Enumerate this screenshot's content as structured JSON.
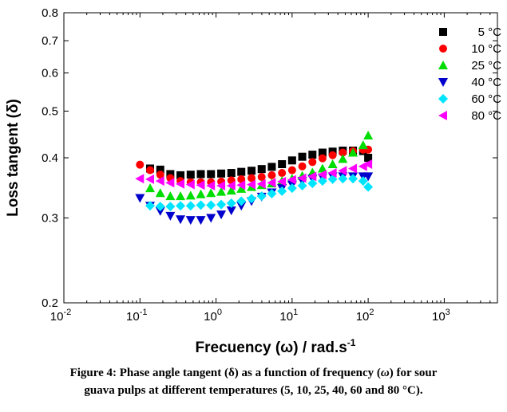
{
  "chart_data": {
    "type": "scatter",
    "xscale": "log",
    "yscale": "log",
    "xlim": [
      0.01,
      5000
    ],
    "ylim": [
      0.2,
      0.8
    ],
    "xlabel": "Frecuency (ω) / rad.s",
    "xlabel_sup": "-1",
    "ylabel": "Loss tangent (δ)",
    "x_ticks": [
      {
        "value": 0.01,
        "base": "10",
        "exp": "-2"
      },
      {
        "value": 0.1,
        "base": "10",
        "exp": "-1"
      },
      {
        "value": 1,
        "base": "10",
        "exp": "0"
      },
      {
        "value": 10,
        "base": "10",
        "exp": "1"
      },
      {
        "value": 100,
        "base": "10",
        "exp": "2"
      },
      {
        "value": 1000,
        "base": "10",
        "exp": "3"
      }
    ],
    "y_ticks": [
      {
        "value": 0.2,
        "label": "0.2"
      },
      {
        "value": 0.3,
        "label": "0.3"
      },
      {
        "value": 0.4,
        "label": "0.4"
      },
      {
        "value": 0.5,
        "label": "0.5"
      },
      {
        "value": 0.6,
        "label": "0.6"
      },
      {
        "value": 0.7,
        "label": "0.7"
      },
      {
        "value": 0.8,
        "label": "0.8"
      }
    ],
    "legend_position": "top-right",
    "x": [
      0.1,
      0.136,
      0.185,
      0.251,
      0.341,
      0.464,
      0.631,
      0.858,
      1.17,
      1.59,
      2.15,
      2.93,
      3.98,
      5.41,
      7.36,
      10,
      13.6,
      18.5,
      25.1,
      34.1,
      46.4,
      63.1,
      85.8,
      100
    ],
    "series": [
      {
        "name": "5 °C",
        "marker": "square",
        "color": "#000000",
        "values": [
          null,
          0.38,
          0.378,
          0.37,
          0.368,
          0.369,
          0.37,
          0.37,
          0.371,
          0.372,
          0.374,
          0.376,
          0.379,
          0.383,
          0.388,
          0.395,
          0.402,
          0.406,
          0.41,
          0.412,
          0.414,
          0.414,
          0.413,
          0.4
        ]
      },
      {
        "name": "10 °C",
        "marker": "circle",
        "color": "#ff0000",
        "values": [
          0.387,
          0.377,
          0.369,
          0.363,
          0.358,
          0.356,
          0.356,
          0.356,
          0.357,
          0.359,
          0.361,
          0.363,
          0.365,
          0.368,
          0.372,
          0.377,
          0.384,
          0.392,
          0.399,
          0.405,
          0.41,
          0.413,
          0.416,
          0.416
        ]
      },
      {
        "name": "25 °C",
        "marker": "triangle-up",
        "color": "#00dd00",
        "values": [
          null,
          0.346,
          0.338,
          0.333,
          0.333,
          0.334,
          0.336,
          0.338,
          0.34,
          0.342,
          0.345,
          0.348,
          0.351,
          0.354,
          0.358,
          0.362,
          0.367,
          0.373,
          0.38,
          0.388,
          0.398,
          0.41,
          0.425,
          0.445
        ]
      },
      {
        "name": "40 °C",
        "marker": "triangle-down",
        "color": "#0000cc",
        "values": [
          0.33,
          0.318,
          0.31,
          0.303,
          0.298,
          0.297,
          0.297,
          0.3,
          0.305,
          0.311,
          0.318,
          0.325,
          0.332,
          0.339,
          0.346,
          0.352,
          0.358,
          0.362,
          0.364,
          0.366,
          0.366,
          0.366,
          0.366,
          0.366
        ]
      },
      {
        "name": "60 °C",
        "marker": "diamond",
        "color": "#00e5ff",
        "values": [
          null,
          0.318,
          0.317,
          0.317,
          0.318,
          0.318,
          0.319,
          0.319,
          0.32,
          0.322,
          0.325,
          0.329,
          0.333,
          0.337,
          0.341,
          0.346,
          0.35,
          0.354,
          0.358,
          0.361,
          0.362,
          0.362,
          0.358,
          0.348
        ]
      },
      {
        "name": "80 °C",
        "marker": "triangle-left",
        "color": "#ff00ff",
        "values": [
          0.362,
          0.361,
          0.358,
          0.355,
          0.353,
          0.352,
          0.351,
          0.35,
          0.35,
          0.35,
          0.351,
          0.352,
          0.353,
          0.355,
          0.357,
          0.36,
          0.363,
          0.366,
          0.369,
          0.372,
          0.376,
          0.38,
          0.384,
          0.388
        ]
      }
    ]
  },
  "caption": {
    "line1_before": "Figure 4: Phase angle tangent (δ) as a function of frequency (",
    "line1_omega": "ω",
    "line1_after": ") for sour",
    "line2": "guava pulps at different temperatures (5, 10, 25, 40, 60 and 80 °C)."
  }
}
